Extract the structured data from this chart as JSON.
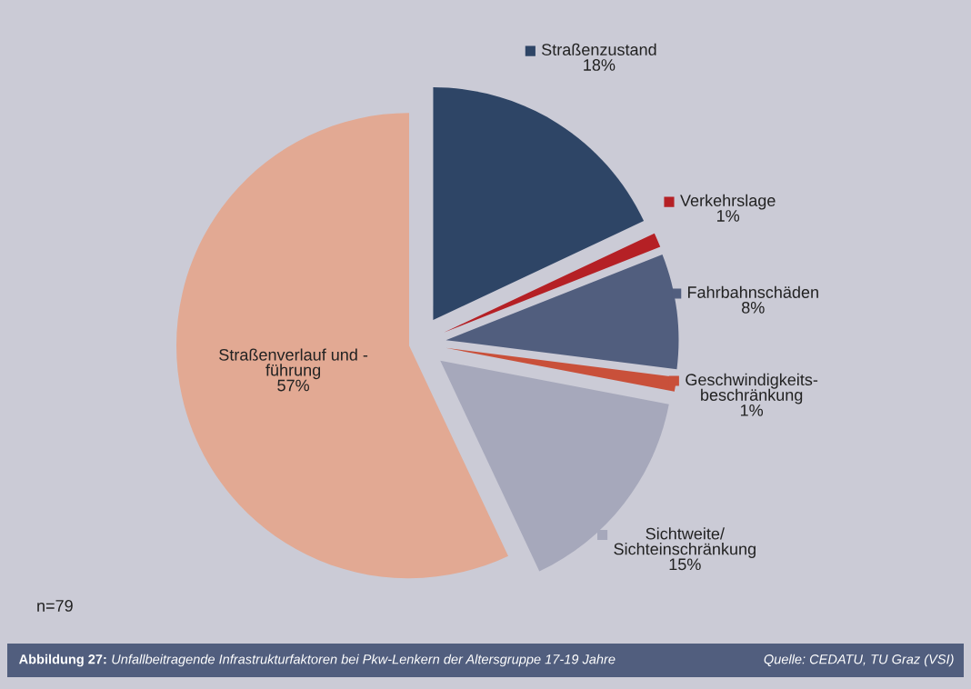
{
  "chart_data": {
    "type": "pie",
    "title": "Abbildung 27: Unfallbeitragende Infrastrukturfaktoren bei Pkw-Lenkern der Altersgruppe 17-19 Jahre",
    "categories": [
      "Straßenzustand",
      "Verkehrslage",
      "Fahrbahnschäden",
      "Geschwindigkeits-\nbeschränkung",
      "Sichtweite/\nSichteinschränkung",
      "Straßenverlauf und -\nführung"
    ],
    "values": [
      18,
      1,
      8,
      1,
      15,
      57
    ],
    "colors": [
      "#2e4566",
      "#b52025",
      "#515e7e",
      "#c9503a",
      "#a6a8bb",
      "#e2a993"
    ],
    "value_labels": [
      "18%",
      "1%",
      "8%",
      "1%",
      "15%",
      "57%"
    ],
    "legend": "right",
    "annotations": [
      "n=79",
      "Quelle: CEDATU, TU Graz (VSI)"
    ]
  }
}
